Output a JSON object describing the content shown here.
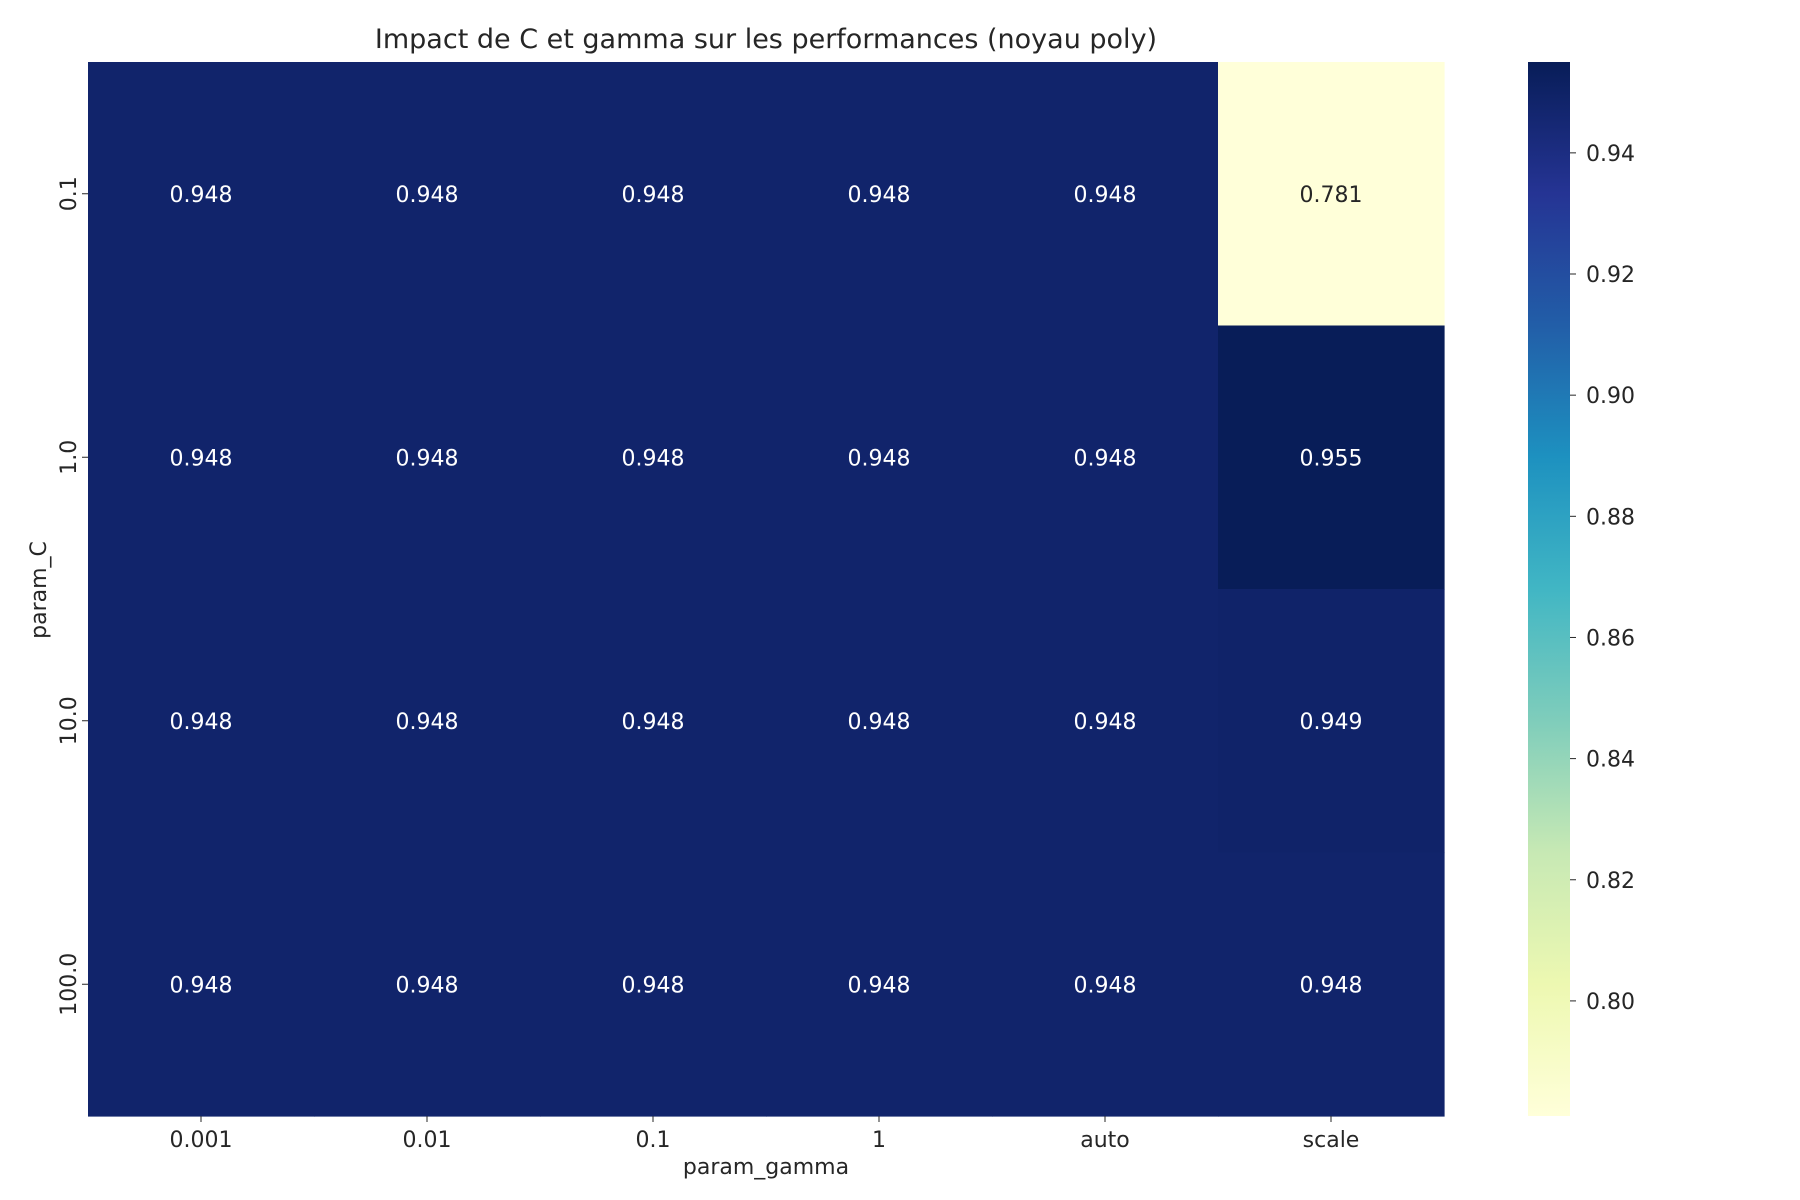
{
  "chart_data": {
    "type": "heatmap",
    "title": "Impact de C et gamma sur les performances (noyau poly)",
    "xlabel": "param_gamma",
    "ylabel": "param_C",
    "x_categories": [
      "0.001",
      "0.01",
      "0.1",
      "1",
      "auto",
      "scale"
    ],
    "y_categories": [
      "0.1",
      "1.0",
      "10.0",
      "100.0"
    ],
    "values": [
      [
        0.948,
        0.948,
        0.948,
        0.948,
        0.948,
        0.781
      ],
      [
        0.948,
        0.948,
        0.948,
        0.948,
        0.948,
        0.955
      ],
      [
        0.948,
        0.948,
        0.948,
        0.948,
        0.948,
        0.949
      ],
      [
        0.948,
        0.948,
        0.948,
        0.948,
        0.948,
        0.948
      ]
    ],
    "value_format": "0.000",
    "colormap": "YlGnBu",
    "colorbar": {
      "range": [
        0.781,
        0.955
      ],
      "ticks": [
        "0.80",
        "0.82",
        "0.84",
        "0.86",
        "0.88",
        "0.90",
        "0.92",
        "0.94"
      ],
      "position": "right"
    },
    "annotation_colors": {
      "dark_cell": "#ffffff",
      "light_cell": "#262626"
    }
  }
}
